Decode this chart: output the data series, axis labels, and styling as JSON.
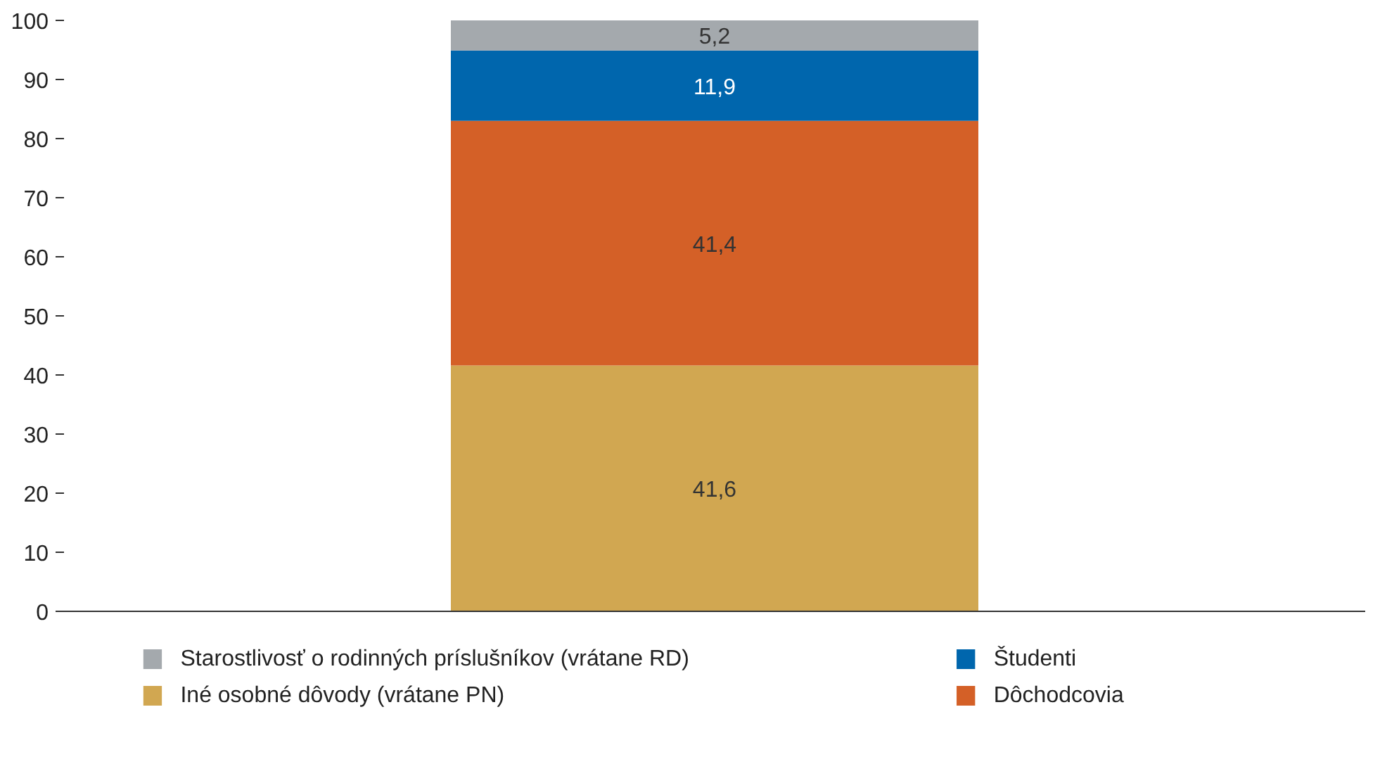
{
  "chart_data": {
    "type": "bar",
    "stacked": true,
    "categories": [
      null
    ],
    "series": [
      {
        "name": "Iné osobné dôvody (vrátane PN)",
        "color": "#d1a751",
        "values": [
          41.6
        ],
        "value_labels": [
          "41,6"
        ]
      },
      {
        "name": "Dôchodcovia",
        "color": "#d46027",
        "values": [
          41.4
        ],
        "value_labels": [
          "41,4"
        ]
      },
      {
        "name": "Študenti",
        "color": "#0066ad",
        "values": [
          11.9
        ],
        "value_labels": [
          "11,9"
        ]
      },
      {
        "name": "Starostlivosť o rodinných príslušníkov (vrátane RD)",
        "color": "#a4a9ad",
        "values": [
          5.2
        ],
        "value_labels": [
          "5,2"
        ]
      }
    ],
    "ylim": [
      0,
      100
    ],
    "yticks": [
      0,
      10,
      20,
      30,
      40,
      50,
      60,
      70,
      80,
      90,
      100
    ],
    "grid": false,
    "legend": "bottom"
  }
}
